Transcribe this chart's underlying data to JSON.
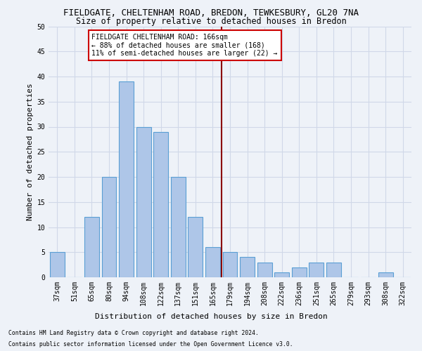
{
  "title": "FIELDGATE, CHELTENHAM ROAD, BREDON, TEWKESBURY, GL20 7NA",
  "subtitle": "Size of property relative to detached houses in Bredon",
  "xlabel": "Distribution of detached houses by size in Bredon",
  "ylabel": "Number of detached properties",
  "footer1": "Contains HM Land Registry data © Crown copyright and database right 2024.",
  "footer2": "Contains public sector information licensed under the Open Government Licence v3.0.",
  "categories": [
    "37sqm",
    "51sqm",
    "65sqm",
    "80sqm",
    "94sqm",
    "108sqm",
    "122sqm",
    "137sqm",
    "151sqm",
    "165sqm",
    "179sqm",
    "194sqm",
    "208sqm",
    "222sqm",
    "236sqm",
    "251sqm",
    "265sqm",
    "279sqm",
    "293sqm",
    "308sqm",
    "322sqm"
  ],
  "values": [
    5,
    0,
    12,
    20,
    39,
    30,
    29,
    20,
    12,
    6,
    5,
    4,
    3,
    1,
    2,
    3,
    3,
    0,
    0,
    1,
    0
  ],
  "bar_color": "#aec6e8",
  "bar_edge_color": "#5a9fd4",
  "vline_x": 9.5,
  "vline_color": "#8b0000",
  "annotation_text": "FIELDGATE CHELTENHAM ROAD: 166sqm\n← 88% of detached houses are smaller (168)\n11% of semi-detached houses are larger (22) →",
  "annotation_box_color": "#ffffff",
  "annotation_box_edge": "#cc0000",
  "ylim": [
    0,
    50
  ],
  "yticks": [
    0,
    5,
    10,
    15,
    20,
    25,
    30,
    35,
    40,
    45,
    50
  ],
  "grid_color": "#d0d8e8",
  "bg_color": "#eef2f8",
  "title_fontsize": 9,
  "subtitle_fontsize": 8.5,
  "axis_label_fontsize": 8,
  "tick_fontsize": 7,
  "annotation_fontsize": 7,
  "ylabel_fontsize": 8
}
